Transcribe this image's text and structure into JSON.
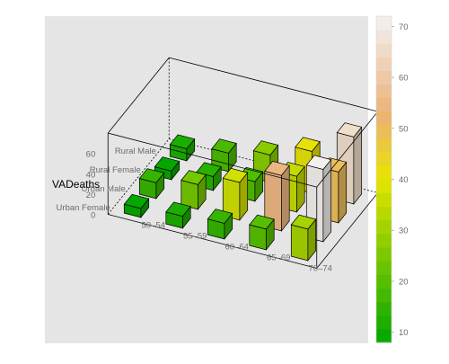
{
  "chart_data": {
    "type": "bar3d",
    "zlabel": "VADeaths",
    "z_ticks": [
      0,
      20,
      40,
      60
    ],
    "rows": [
      "Urban Female",
      "Urban Male",
      "Rural Female",
      "Rural Male"
    ],
    "cols": [
      "50–54",
      "55–59",
      "60–64",
      "65–69",
      "70–74"
    ],
    "values": [
      [
        8.7,
        11.7,
        15.4,
        20.3,
        30.9
      ],
      [
        15.5,
        24.3,
        37.0,
        54.6,
        71.1
      ],
      [
        8.4,
        13.6,
        19.3,
        35.1,
        50.0
      ],
      [
        11.7,
        18.1,
        26.9,
        41.0,
        66.0
      ]
    ],
    "colorkey": {
      "ticks": [
        10,
        20,
        30,
        40,
        50,
        60,
        70
      ],
      "range": [
        8,
        72
      ],
      "bins": 24
    },
    "colors": {
      "panel": "#e5e5e5",
      "low": "#00a600",
      "mid": "#e6e600",
      "high": "#f2f2f2"
    }
  }
}
